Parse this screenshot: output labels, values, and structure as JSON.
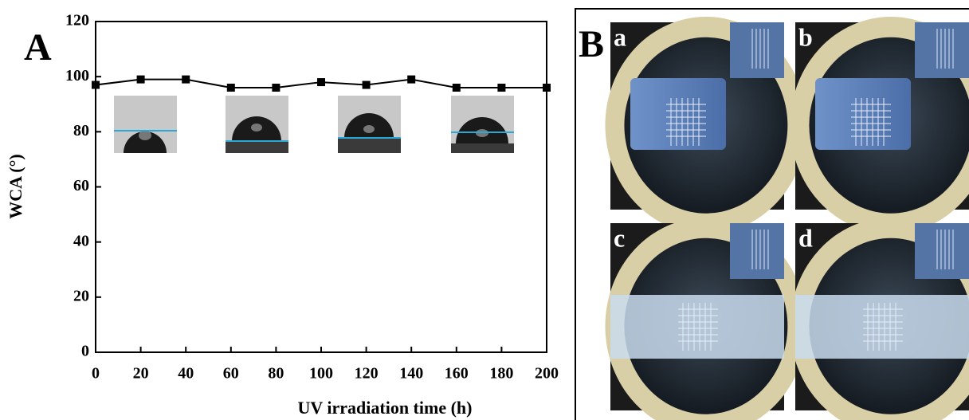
{
  "chart_data": {
    "type": "line",
    "panel_label": "A",
    "xlabel": "UV irradiation time (h)",
    "ylabel": "WCA (°)",
    "x": [
      0,
      20,
      40,
      60,
      80,
      100,
      120,
      140,
      160,
      180,
      200
    ],
    "series": [
      {
        "color": "#000000",
        "values": [
          97,
          99,
          99,
          96,
          96,
          98,
          97,
          99,
          96,
          96,
          96
        ]
      }
    ],
    "xlim": [
      0,
      200
    ],
    "xticks": [
      0,
      20,
      40,
      60,
      80,
      100,
      120,
      140,
      160,
      180,
      200
    ],
    "ylim": [
      0,
      120
    ],
    "yticks": [
      0,
      20,
      40,
      60,
      80,
      100,
      120
    ]
  },
  "photos": {
    "panel_label": "B",
    "labels": [
      "a",
      "b",
      "c",
      "d"
    ]
  }
}
